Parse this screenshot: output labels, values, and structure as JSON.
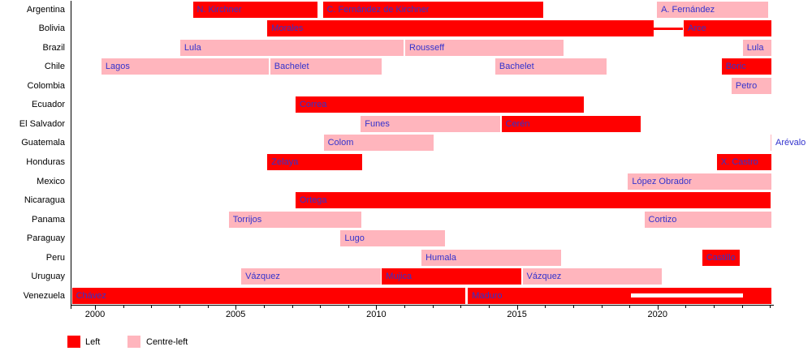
{
  "chart_data": {
    "type": "gantt",
    "description": "Timeline of left and centre-left presidents in Latin American countries",
    "x_axis": {
      "tick_years": [
        2000,
        2005,
        2010,
        2015,
        2020
      ],
      "tick_labels": [
        "2000",
        "2005",
        "2010",
        "2015",
        "2020"
      ],
      "minor_tick_step": 1,
      "range": [
        1999.15,
        2024.05
      ]
    },
    "countries": [
      "Argentina",
      "Bolivia",
      "Brazil",
      "Chile",
      "Colombia",
      "Ecuador",
      "El Salvador",
      "Guatemala",
      "Honduras",
      "Mexico",
      "Nicaragua",
      "Panama",
      "Paraguay",
      "Peru",
      "Uruguay",
      "Venezuela"
    ],
    "legend": [
      {
        "label": "Left",
        "type": "left"
      },
      {
        "label": "Centre-left",
        "type": "centre-left"
      }
    ],
    "colors": {
      "left": "#ff0000",
      "centre-left": "#ffb5bd",
      "bar-label": "#3232cd",
      "axis": "#000000"
    },
    "bars": [
      {
        "country": "Argentina",
        "label": "N. Kirchner",
        "type": "left",
        "start": 2003.45,
        "end": 2007.93
      },
      {
        "country": "Argentina",
        "label": "C. Fernández de Kirchner",
        "type": "left",
        "start": 2008.07,
        "end": 2015.95
      },
      {
        "country": "Argentina",
        "label": "A. Fernández",
        "type": "centre-left",
        "start": 2019.95,
        "end": 2023.95
      },
      {
        "country": "Bolivia",
        "label": "Morales",
        "type": "left",
        "start": 2006.1,
        "end": 2019.87
      },
      {
        "country": "Bolivia",
        "label": "",
        "type": "left",
        "start": 2019.87,
        "end": 2020.9,
        "style": "line"
      },
      {
        "country": "Bolivia",
        "label": "Arce",
        "type": "left",
        "start": 2020.9,
        "end": 2024.05
      },
      {
        "country": "Brazil",
        "label": "Lula",
        "type": "centre-left",
        "start": 2003.0,
        "end": 2011.0
      },
      {
        "country": "Brazil",
        "label": "Rousseff",
        "type": "centre-left",
        "start": 2011.0,
        "end": 2016.67
      },
      {
        "country": "Brazil",
        "label": "Lula",
        "type": "centre-left",
        "start": 2023.0,
        "end": 2024.05
      },
      {
        "country": "Chile",
        "label": "Lagos",
        "type": "centre-left",
        "start": 2000.2,
        "end": 2006.2
      },
      {
        "country": "Chile",
        "label": "Bachelet",
        "type": "centre-left",
        "start": 2006.2,
        "end": 2010.2
      },
      {
        "country": "Chile",
        "label": "Bachelet",
        "type": "centre-left",
        "start": 2014.2,
        "end": 2018.2
      },
      {
        "country": "Chile",
        "label": "Boric",
        "type": "left",
        "start": 2022.25,
        "end": 2024.05
      },
      {
        "country": "Colombia",
        "label": "Petro",
        "type": "centre-left",
        "start": 2022.6,
        "end": 2024.05
      },
      {
        "country": "Ecuador",
        "label": "Correa",
        "type": "left",
        "start": 2007.1,
        "end": 2017.4
      },
      {
        "country": "El Salvador",
        "label": "Funes",
        "type": "centre-left",
        "start": 2009.42,
        "end": 2014.42
      },
      {
        "country": "El Salvador",
        "label": "Cerén",
        "type": "left",
        "start": 2014.42,
        "end": 2019.42
      },
      {
        "country": "Guatemala",
        "label": "Colom",
        "type": "centre-left",
        "start": 2008.1,
        "end": 2012.05
      },
      {
        "country": "Guatemala",
        "label": "",
        "type": "centre-left",
        "start": 2024.0,
        "end": 2024.05
      },
      {
        "country": "Honduras",
        "label": "Zelaya",
        "type": "left",
        "start": 2006.1,
        "end": 2009.5
      },
      {
        "country": "Honduras",
        "label": "X. Castro",
        "type": "left",
        "start": 2022.08,
        "end": 2024.05
      },
      {
        "country": "Mexico",
        "label": "López Obrador",
        "type": "centre-left",
        "start": 2018.92,
        "end": 2024.05
      },
      {
        "country": "Nicaragua",
        "label": "Ortega",
        "type": "left",
        "start": 2007.1,
        "end": 2024.05
      },
      {
        "country": "Panama",
        "label": "Torrijos",
        "type": "centre-left",
        "start": 2004.73,
        "end": 2009.5
      },
      {
        "country": "Panama",
        "label": "Cortizo",
        "type": "centre-left",
        "start": 2019.5,
        "end": 2024.05
      },
      {
        "country": "Paraguay",
        "label": "Lugo",
        "type": "centre-left",
        "start": 2008.7,
        "end": 2012.47
      },
      {
        "country": "Peru",
        "label": "Humala",
        "type": "centre-left",
        "start": 2011.58,
        "end": 2016.58
      },
      {
        "country": "Peru",
        "label": "Castillo",
        "type": "left",
        "start": 2021.56,
        "end": 2022.94
      },
      {
        "country": "Uruguay",
        "label": "Vázquez",
        "type": "centre-left",
        "start": 2005.17,
        "end": 2010.17
      },
      {
        "country": "Uruguay",
        "label": "Mujica",
        "type": "left",
        "start": 2010.17,
        "end": 2015.17
      },
      {
        "country": "Uruguay",
        "label": "Vázquez",
        "type": "centre-left",
        "start": 2015.17,
        "end": 2020.17
      },
      {
        "country": "Venezuela",
        "label": "Chávez",
        "type": "left",
        "start": 1999.15,
        "end": 2013.17
      },
      {
        "country": "Venezuela",
        "label": "Maduro",
        "type": "left",
        "start": 2013.23,
        "end": 2024.05
      }
    ],
    "overlays": [
      {
        "country": "Venezuela",
        "style": "white-stripe",
        "start": 2019.05,
        "end": 2023.03
      }
    ],
    "annotations": [
      {
        "country": "Guatemala",
        "label": "Arévalo",
        "position": "outside-right"
      }
    ]
  }
}
